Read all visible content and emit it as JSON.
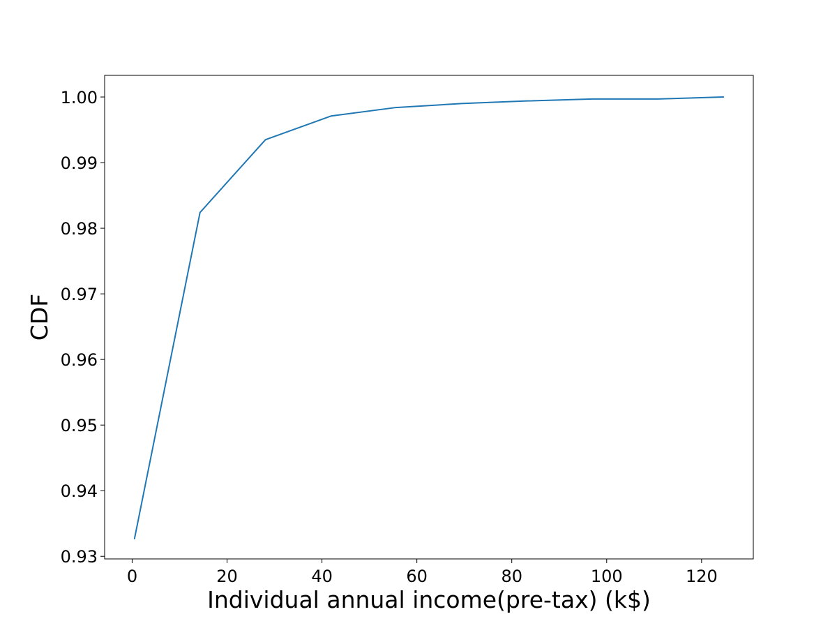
{
  "chart_data": {
    "type": "line",
    "title": "",
    "xlabel": "Individual annual income(pre-tax) (k$)",
    "ylabel": "CDF",
    "xlim": [
      -5.8,
      130.9
    ],
    "ylim": [
      0.9296,
      1.0033
    ],
    "grid": false,
    "x_ticks": [
      0,
      20,
      40,
      60,
      80,
      100,
      120
    ],
    "x_tick_labels": [
      "0",
      "20",
      "40",
      "60",
      "80",
      "100",
      "120"
    ],
    "y_ticks": [
      0.93,
      0.94,
      0.95,
      0.96,
      0.97,
      0.98,
      0.99,
      1.0
    ],
    "y_tick_labels": [
      "0.93",
      "0.94",
      "0.95",
      "0.96",
      "0.97",
      "0.98",
      "0.99",
      "1.00"
    ],
    "series": [
      {
        "color": "#1f77b4",
        "x": [
          0.5,
          14.3,
          28.1,
          41.9,
          55.6,
          69.4,
          83.2,
          97.0,
          110.8,
          124.6
        ],
        "y": [
          0.9327,
          0.9824,
          0.9935,
          0.9971,
          0.9984,
          0.999,
          0.9994,
          0.9997,
          0.9997,
          1.0
        ]
      }
    ]
  }
}
